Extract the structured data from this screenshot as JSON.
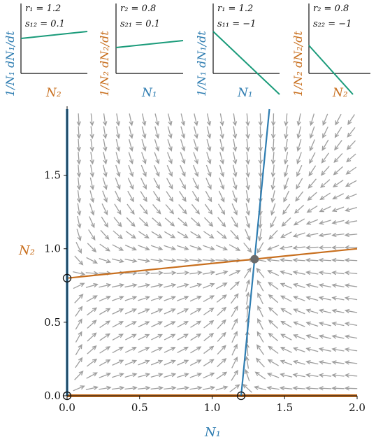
{
  "colors": {
    "n1": "#2f7db1",
    "n2": "#c86f1e",
    "growth_line": "#1a9b7a",
    "arrows": "#9e9e9e",
    "axis": "#111111"
  },
  "chart_data": [
    {
      "type": "line",
      "panel": "inset-1",
      "ylabel": "1/N₁ dN₁/dt",
      "xlabel": "N₂",
      "annotations": [
        "r₁ = 1.2",
        "s₁₂ = 0.1"
      ],
      "series": [
        {
          "x": [
            0,
            1
          ],
          "y": [
            0.5,
            0.6
          ]
        }
      ]
    },
    {
      "type": "line",
      "panel": "inset-2",
      "ylabel": "1/N₂ dN₂/dt",
      "xlabel": "N₁",
      "annotations": [
        "r₂ = 0.8",
        "s₂₁ = 0.1"
      ],
      "series": [
        {
          "x": [
            0,
            1
          ],
          "y": [
            0.37,
            0.47
          ]
        }
      ]
    },
    {
      "type": "line",
      "panel": "inset-3",
      "ylabel": "1/N₁ dN₁/dt",
      "xlabel": "N₁",
      "annotations": [
        "r₁ = 1.2",
        "s₁₁ = −1"
      ],
      "series": [
        {
          "x": [
            0,
            1
          ],
          "y": [
            0.6,
            -0.3
          ]
        }
      ]
    },
    {
      "type": "line",
      "panel": "inset-4",
      "ylabel": "1/N₂ dN₂/dt",
      "xlabel": "N₂",
      "annotations": [
        "r₂ = 0.8",
        "s₂₂ = −1"
      ],
      "series": [
        {
          "x": [
            0,
            1
          ],
          "y": [
            0.4,
            -0.3
          ]
        }
      ]
    },
    {
      "type": "scatter",
      "panel": "phase-plane",
      "xlabel": "N₁",
      "ylabel": "N₂",
      "xlim": [
        0,
        2
      ],
      "ylim": [
        0,
        1.95
      ],
      "xticks": [
        "0.0",
        "0.5",
        "1.0",
        "1.5",
        "2.0"
      ],
      "yticks": [
        "0.0",
        "0.5",
        "1.0",
        "1.5"
      ],
      "grid": false,
      "params": {
        "r1": 1.2,
        "r2": 0.8,
        "s11": -1,
        "s12": 0.1,
        "s21": 0.1,
        "s22": -1
      },
      "nullclines": {
        "n1": [
          {
            "x": [
              0,
              0
            ],
            "y": [
              0,
              1.95
            ]
          },
          {
            "x": [
              1.2,
              1.395
            ],
            "y": [
              0,
              1.95
            ]
          }
        ],
        "n2": [
          {
            "x": [
              0,
              2
            ],
            "y": [
              0,
              0
            ]
          },
          {
            "x": [
              0,
              2
            ],
            "y": [
              0.8,
              1.0
            ]
          }
        ]
      },
      "equilibria": [
        {
          "x": 0,
          "y": 0,
          "stable": false
        },
        {
          "x": 0,
          "y": 0.8,
          "stable": false
        },
        {
          "x": 1.2,
          "y": 0,
          "stable": false
        },
        {
          "x": 1.293,
          "y": 0.929,
          "stable": true
        }
      ]
    }
  ]
}
